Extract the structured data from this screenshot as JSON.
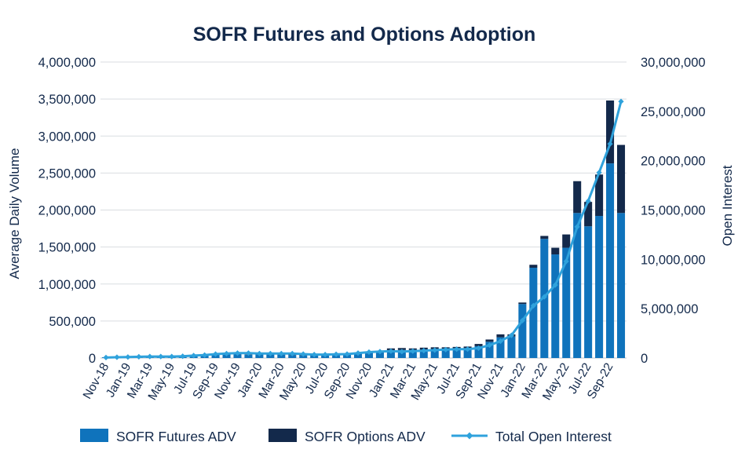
{
  "chart_data": {
    "type": "bar",
    "title": "SOFR Futures and Options Adoption",
    "ylabel": "Average Daily Volume",
    "y2label": "Open Interest",
    "ylim": [
      0,
      4000000
    ],
    "y2lim": [
      0,
      30000000
    ],
    "yticks": [
      "0",
      "500,000",
      "1,000,000",
      "1,500,000",
      "2,000,000",
      "2,500,000",
      "3,000,000",
      "3,500,000",
      "4,000,000"
    ],
    "y2ticks": [
      "0",
      "5,000,000",
      "10,000,000",
      "15,000,000",
      "20,000,000",
      "25,000,000",
      "30,000,000"
    ],
    "grid": true,
    "legend_position": "bottom",
    "categories": [
      "Nov-18",
      "Dec-18",
      "Jan-19",
      "Feb-19",
      "Mar-19",
      "Apr-19",
      "May-19",
      "Jun-19",
      "Jul-19",
      "Aug-19",
      "Sep-19",
      "Oct-19",
      "Nov-19",
      "Dec-19",
      "Jan-20",
      "Feb-20",
      "Mar-20",
      "Apr-20",
      "May-20",
      "Jun-20",
      "Jul-20",
      "Aug-20",
      "Sep-20",
      "Oct-20",
      "Nov-20",
      "Dec-20",
      "Jan-21",
      "Feb-21",
      "Mar-21",
      "Apr-21",
      "May-21",
      "Jun-21",
      "Jul-21",
      "Aug-21",
      "Sep-21",
      "Oct-21",
      "Nov-21",
      "Dec-21",
      "Jan-22",
      "Feb-22",
      "Mar-22",
      "Apr-22",
      "May-22",
      "Jun-22",
      "Jul-22",
      "Aug-22",
      "Sep-22",
      "Oct-22"
    ],
    "x_tick_labels": [
      "Nov-18",
      "Jan-19",
      "Mar-19",
      "May-19",
      "Jul-19",
      "Sep-19",
      "Nov-19",
      "Jan-20",
      "Mar-20",
      "May-20",
      "Jul-20",
      "Sep-20",
      "Nov-20",
      "Jan-21",
      "Mar-21",
      "May-21",
      "Jul-21",
      "Sep-21",
      "Nov-21",
      "Jan-22",
      "Mar-22",
      "May-22",
      "Jul-22",
      "Sep-22"
    ],
    "series": [
      {
        "name": "SOFR Futures ADV",
        "type": "bar",
        "stack": "adv",
        "color": "#0f73bc",
        "values": [
          10000,
          15000,
          20000,
          25000,
          30000,
          25000,
          25000,
          30000,
          35000,
          40000,
          45000,
          50000,
          50000,
          45000,
          50000,
          50000,
          45000,
          40000,
          35000,
          40000,
          45000,
          50000,
          55000,
          60000,
          70000,
          80000,
          100000,
          110000,
          110000,
          110000,
          120000,
          120000,
          130000,
          130000,
          160000,
          220000,
          280000,
          290000,
          730000,
          1220000,
          1610000,
          1400000,
          1490000,
          1960000,
          1780000,
          1920000,
          2630000,
          1960000
        ]
      },
      {
        "name": "SOFR Options ADV",
        "type": "bar",
        "stack": "adv",
        "color": "#13294b",
        "values": [
          0,
          0,
          0,
          0,
          0,
          0,
          0,
          0,
          0,
          0,
          0,
          5000,
          5000,
          5000,
          5000,
          10000,
          20000,
          15000,
          10000,
          10000,
          5000,
          5000,
          5000,
          10000,
          10000,
          10000,
          30000,
          25000,
          20000,
          30000,
          25000,
          25000,
          20000,
          25000,
          30000,
          30000,
          40000,
          30000,
          20000,
          40000,
          40000,
          90000,
          180000,
          430000,
          330000,
          560000,
          850000,
          920000
        ]
      },
      {
        "name": "Total Open Interest",
        "type": "line",
        "axis": "right",
        "color": "#2fa2dc",
        "values": [
          50000,
          80000,
          100000,
          130000,
          150000,
          150000,
          150000,
          180000,
          250000,
          300000,
          400000,
          450000,
          500000,
          500000,
          450000,
          450000,
          450000,
          450000,
          400000,
          350000,
          350000,
          380000,
          400000,
          500000,
          600000,
          650000,
          700000,
          650000,
          700000,
          750000,
          800000,
          850000,
          900000,
          900000,
          1000000,
          1300000,
          1700000,
          2300000,
          3800000,
          5300000,
          6200000,
          7400000,
          9800000,
          13300000,
          15900000,
          18800000,
          21700000,
          26000000
        ]
      }
    ]
  }
}
